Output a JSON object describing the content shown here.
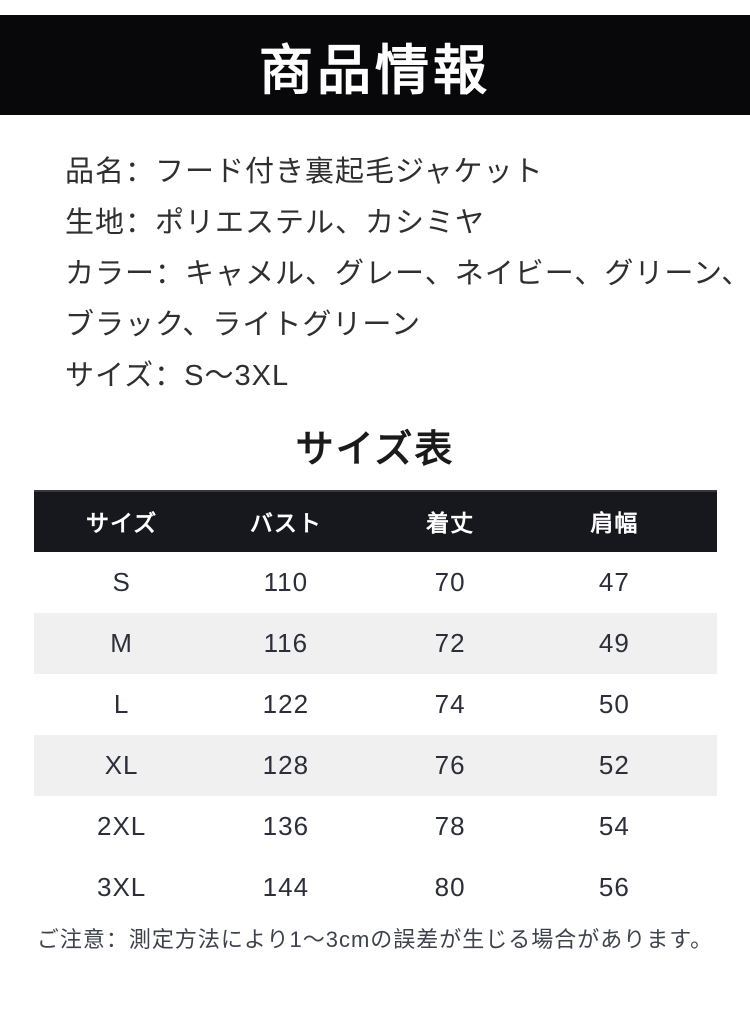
{
  "header": {
    "title": "商品情報"
  },
  "info": {
    "lines": [
      "品名：フード付き裏起毛ジャケット",
      "生地：ポリエステル、カシミヤ",
      "カラー：キャメル、グレー、ネイビー、グリーン、",
      "ブラック、ライトグリーン",
      "サイズ：S〜3XL"
    ]
  },
  "size_table": {
    "title": "サイズ表",
    "columns": [
      "サイズ",
      "バスト",
      "着丈",
      "肩幅"
    ],
    "rows": [
      [
        "S",
        "110",
        "70",
        "47"
      ],
      [
        "M",
        "116",
        "72",
        "49"
      ],
      [
        "L",
        "122",
        "74",
        "50"
      ],
      [
        "XL",
        "128",
        "76",
        "52"
      ],
      [
        "2XL",
        "136",
        "78",
        "54"
      ],
      [
        "3XL",
        "144",
        "80",
        "56"
      ]
    ]
  },
  "note": "ご注意：測定方法により1〜3cmの誤差が生じる場合があります。",
  "colors": {
    "banner_bg": "#08080b",
    "table_header_bg": "#17181e",
    "row_stripe": "#f0f0f0",
    "body_text": "#2f2f2f",
    "table_text": "#2c3f3a",
    "note_text": "#3e424c"
  }
}
